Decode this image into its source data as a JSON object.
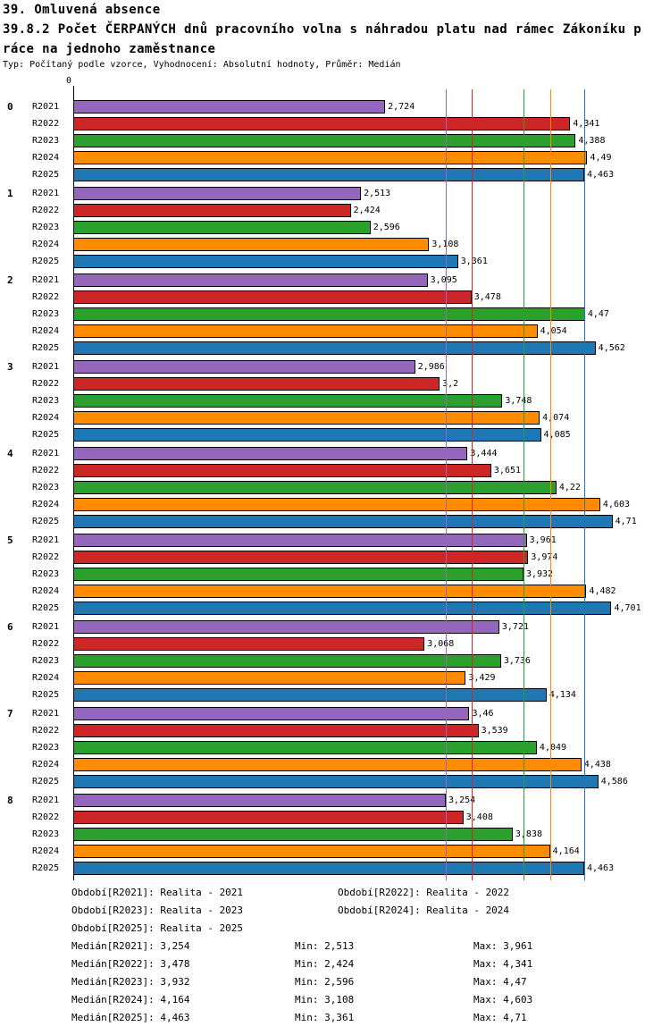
{
  "header": {
    "title": "39. Omluvená absence",
    "subtitle_line1": "39.8.2 Počet ČERPANÝCH dnů pracovního volna s náhradou platu nad rámec Zákoníku p",
    "subtitle_line2": "ráce na jednoho zaměstnance",
    "meta": "Typ: Počítaný podle vzorce, Vyhodnocení: Absolutní hodnoty, Průměr: Medián"
  },
  "chart_data": {
    "type": "bar",
    "orientation": "horizontal",
    "title": "39.8.2 Počet ČERPANÝCH dnů pracovního volna s náhradou platu nad rámec Zákoníku práce na jednoho zaměstnance",
    "axis_zero_label": "0",
    "xlim": [
      0,
      4.9
    ],
    "grid": "median-lines-per-series",
    "legend_position": "bottom",
    "categories": [
      "0",
      "1",
      "2",
      "3",
      "4",
      "5",
      "6",
      "7",
      "8"
    ],
    "series": [
      {
        "name": "R2021",
        "color": "#9467bd",
        "median": 3.254,
        "values": [
          2.724,
          2.513,
          3.095,
          2.986,
          3.444,
          3.961,
          3.721,
          3.46,
          3.254
        ],
        "value_labels": [
          "2,724",
          "2,513",
          "3,095",
          "2,986",
          "3,444",
          "3,961",
          "3,721",
          "3,46",
          "3,254"
        ]
      },
      {
        "name": "R2022",
        "color": "#cc2626",
        "median": 3.478,
        "values": [
          4.341,
          2.424,
          3.478,
          3.2,
          3.651,
          3.974,
          3.068,
          3.539,
          3.408
        ],
        "value_labels": [
          "4,341",
          "2,424",
          "3,478",
          "3,2",
          "3,651",
          "3,974",
          "3,068",
          "3,539",
          "3,408"
        ]
      },
      {
        "name": "R2023",
        "color": "#2ca02c",
        "median": 3.932,
        "values": [
          4.388,
          2.596,
          4.47,
          3.748,
          4.22,
          3.932,
          3.736,
          4.049,
          3.838
        ],
        "value_labels": [
          "4,388",
          "2,596",
          "4,47",
          "3,748",
          "4,22",
          "3,932",
          "3,736",
          "4,049",
          "3,838"
        ]
      },
      {
        "name": "R2024",
        "color": "#ff8c00",
        "median": 4.164,
        "values": [
          4.49,
          3.108,
          4.054,
          4.074,
          4.603,
          4.482,
          3.429,
          4.438,
          4.164
        ],
        "value_labels": [
          "4,49",
          "3,108",
          "4,054",
          "4,074",
          "4,603",
          "4,482",
          "3,429",
          "4,438",
          "4,164"
        ]
      },
      {
        "name": "R2025",
        "color": "#1f77b4",
        "median": 4.463,
        "values": [
          4.463,
          3.361,
          4.562,
          4.085,
          4.71,
          4.701,
          4.134,
          4.586,
          4.463
        ],
        "value_labels": [
          "4,463",
          "3,361",
          "4,562",
          "4,085",
          "4,71",
          "4,701",
          "4,134",
          "4,586",
          "4,463"
        ]
      }
    ]
  },
  "legend": {
    "items": [
      {
        "label": "Období[R2021]: Realita - 2021"
      },
      {
        "label": "Období[R2022]: Realita - 2022"
      },
      {
        "label": "Období[R2023]: Realita - 2023"
      },
      {
        "label": "Období[R2024]: Realita - 2024"
      },
      {
        "label": "Období[R2025]: Realita - 2025"
      }
    ]
  },
  "stats": {
    "rows": [
      {
        "median": "Medián[R2021]: 3,254",
        "min": "Min: 2,513",
        "max": "Max: 3,961"
      },
      {
        "median": "Medián[R2022]: 3,478",
        "min": "Min: 2,424",
        "max": "Max: 4,341"
      },
      {
        "median": "Medián[R2023]: 3,932",
        "min": "Min: 2,596",
        "max": "Max: 4,47"
      },
      {
        "median": "Medián[R2024]: 4,164",
        "min": "Min: 3,108",
        "max": "Max: 4,603"
      },
      {
        "median": "Medián[R2025]: 4,463",
        "min": "Min: 3,361",
        "max": "Max: 4,71"
      }
    ]
  }
}
